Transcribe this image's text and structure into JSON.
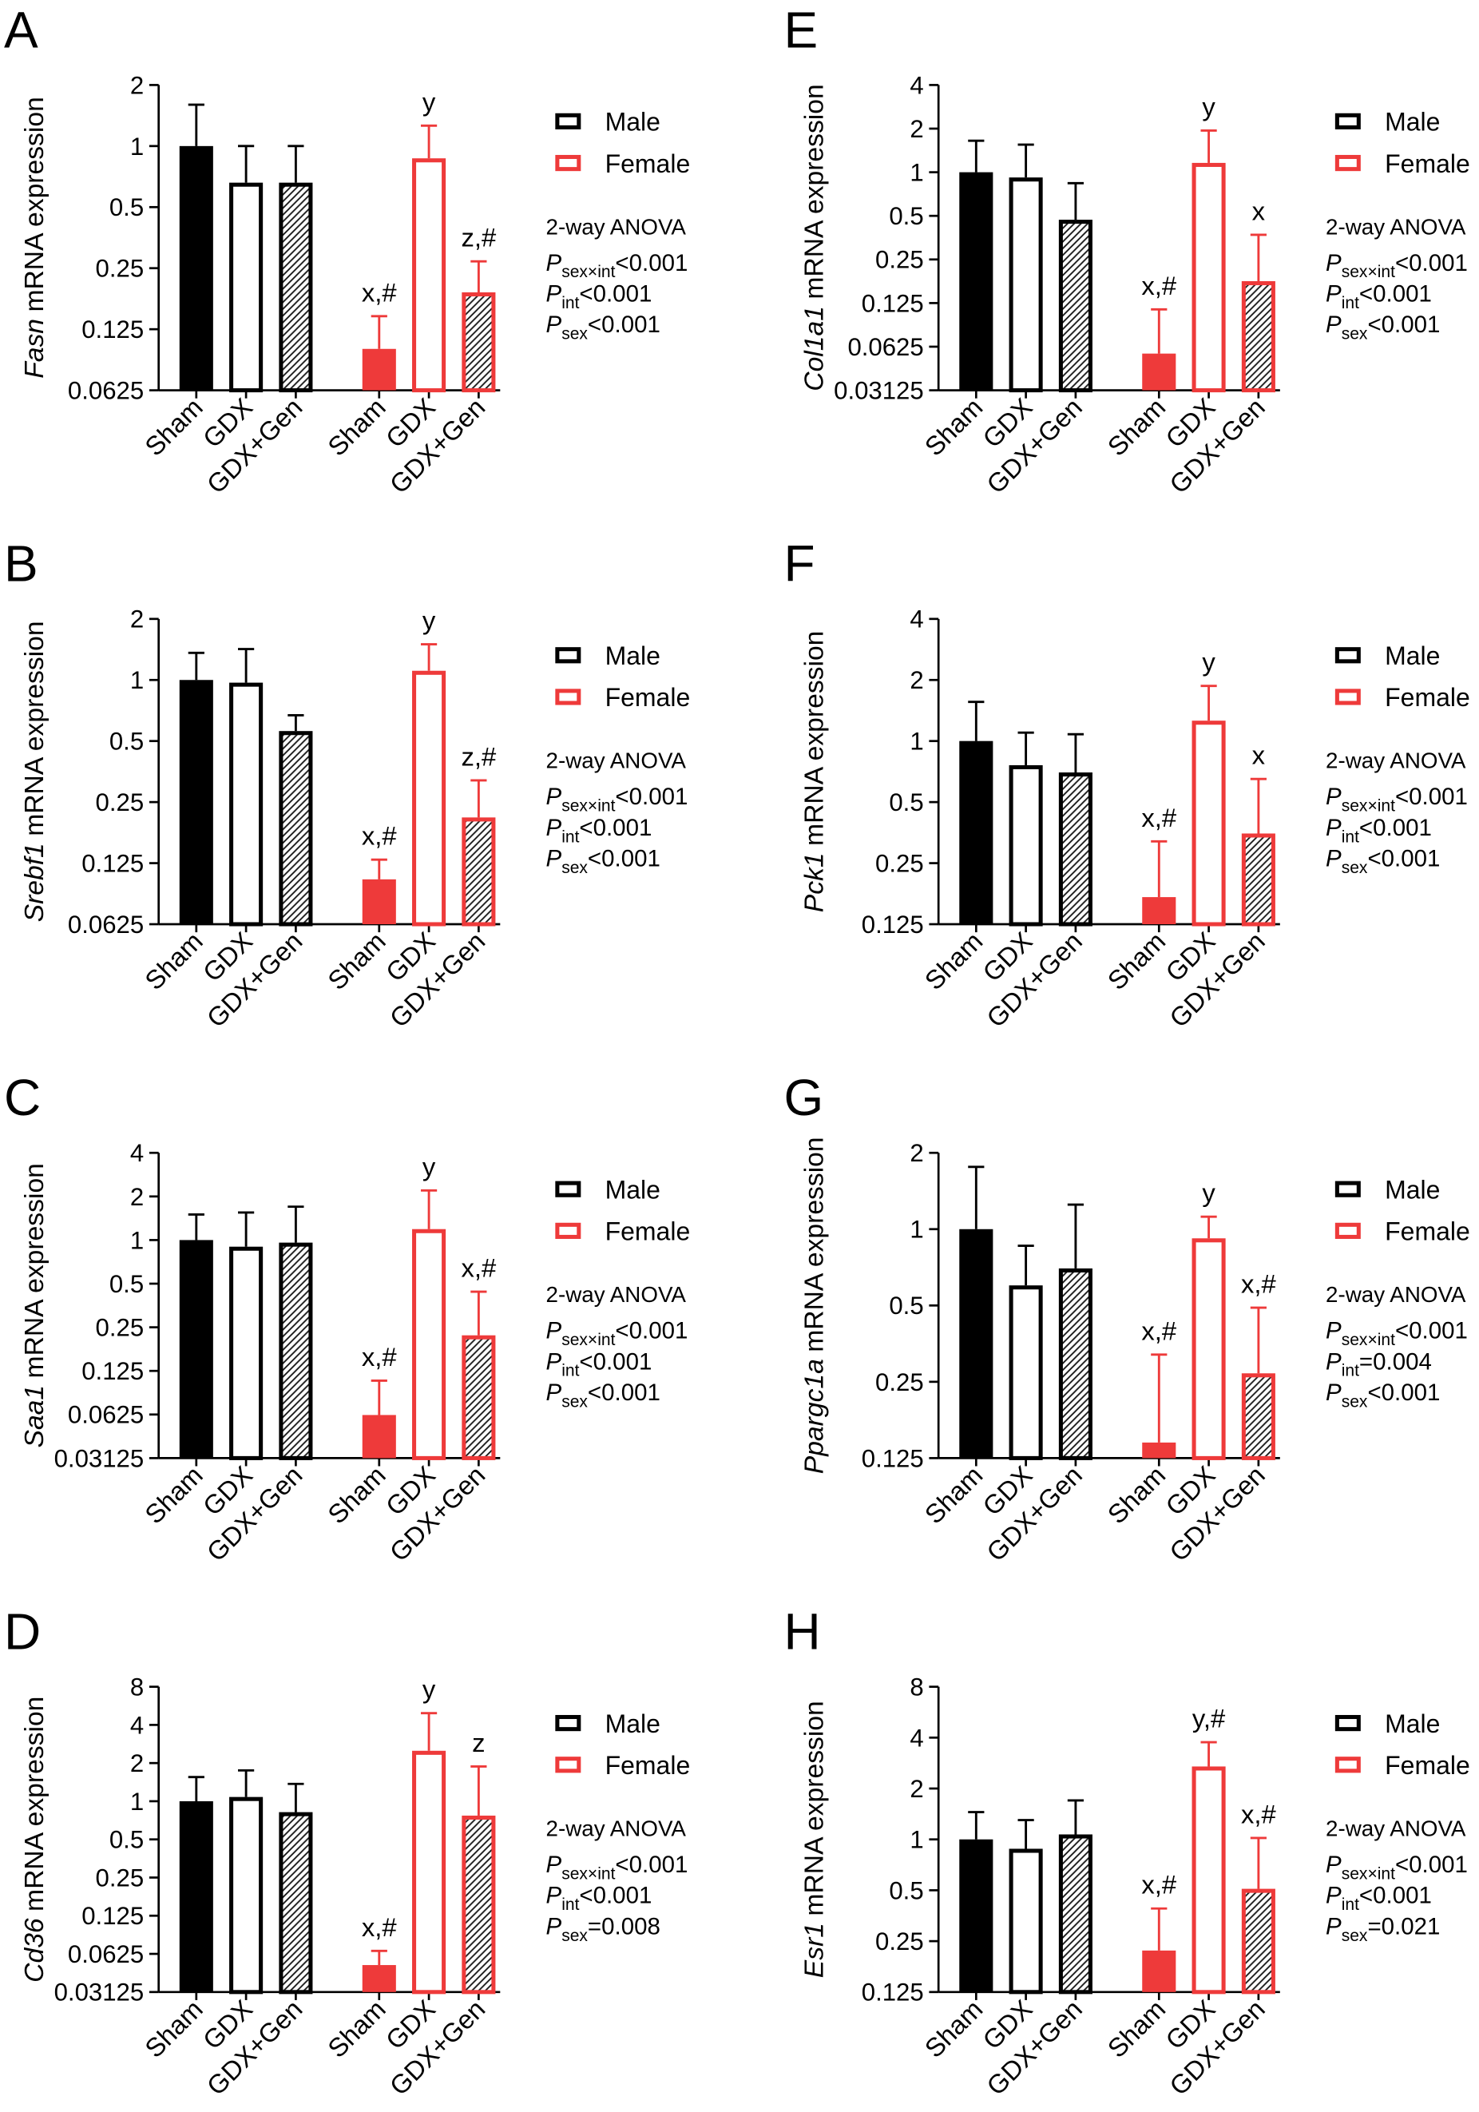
{
  "chart_data": [
    {
      "panel": "A",
      "type": "bar",
      "gene": "Fasn",
      "ylabel_rest": "mRNA expression",
      "yscale": "log2",
      "ylim": [
        0.0625,
        2
      ],
      "yticks": [
        2,
        1,
        0.5,
        0.25,
        0.125,
        0.0625
      ],
      "categories": [
        "Sham",
        "GDX",
        "GDX+Gen"
      ],
      "legend": "right",
      "series": [
        {
          "name": "Male",
          "color": "#000000",
          "values": [
            1.0,
            0.66,
            0.66
          ],
          "error_upper": [
            1.6,
            1.0,
            1.0
          ]
        },
        {
          "name": "Female",
          "color": "#EE3A3A",
          "values": [
            0.1,
            0.87,
            0.19
          ],
          "error_upper": [
            0.145,
            1.26,
            0.27
          ],
          "labels": [
            "x,#",
            "y",
            "z,#"
          ]
        }
      ],
      "stats": {
        "title": "2-way ANOVA",
        "tests": [
          {
            "symbol": "P",
            "sub": "sex×int",
            "value": "<0.001"
          },
          {
            "symbol": "P",
            "sub": "int",
            "value": "<0.001"
          },
          {
            "symbol": "P",
            "sub": "sex",
            "value": "<0.001"
          }
        ]
      }
    },
    {
      "panel": "B",
      "type": "bar",
      "gene": "Srebf1",
      "ylabel_rest": "mRNA expression",
      "yscale": "log2",
      "ylim": [
        0.0625,
        2
      ],
      "yticks": [
        2,
        1,
        0.5,
        0.25,
        0.125,
        0.0625
      ],
      "categories": [
        "Sham",
        "GDX",
        "GDX+Gen"
      ],
      "legend": "right",
      "series": [
        {
          "name": "Male",
          "color": "#000000",
          "values": [
            1.0,
            0.97,
            0.56
          ],
          "error_upper": [
            1.36,
            1.42,
            0.67
          ]
        },
        {
          "name": "Female",
          "color": "#EE3A3A",
          "values": [
            0.104,
            1.11,
            0.21
          ],
          "error_upper": [
            0.13,
            1.5,
            0.32
          ],
          "labels": [
            "x,#",
            "y",
            "z,#"
          ]
        }
      ],
      "stats": {
        "title": "2-way ANOVA",
        "tests": [
          {
            "symbol": "P",
            "sub": "sex×int",
            "value": "<0.001"
          },
          {
            "symbol": "P",
            "sub": "int",
            "value": "<0.001"
          },
          {
            "symbol": "P",
            "sub": "sex",
            "value": "<0.001"
          }
        ]
      }
    },
    {
      "panel": "C",
      "type": "bar",
      "gene": "Saa1",
      "ylabel_rest": "mRNA expression",
      "yscale": "log2",
      "ylim": [
        0.03125,
        4
      ],
      "yticks": [
        4,
        2,
        1,
        0.5,
        0.25,
        0.125,
        0.0625,
        0.03125
      ],
      "categories": [
        "Sham",
        "GDX",
        "GDX+Gen"
      ],
      "legend": "right",
      "series": [
        {
          "name": "Male",
          "color": "#000000",
          "values": [
            1.0,
            0.9,
            0.96
          ],
          "error_upper": [
            1.5,
            1.55,
            1.7
          ]
        },
        {
          "name": "Female",
          "color": "#EE3A3A",
          "values": [
            0.062,
            1.19,
            0.22
          ],
          "error_upper": [
            0.107,
            2.2,
            0.44
          ],
          "labels": [
            "x,#",
            "y",
            "x,#"
          ]
        }
      ],
      "stats": {
        "title": "2-way ANOVA",
        "tests": [
          {
            "symbol": "P",
            "sub": "sex×int",
            "value": "<0.001"
          },
          {
            "symbol": "P",
            "sub": "int",
            "value": "<0.001"
          },
          {
            "symbol": "P",
            "sub": "sex",
            "value": "<0.001"
          }
        ]
      }
    },
    {
      "panel": "D",
      "type": "bar",
      "gene": "Cd36",
      "ylabel_rest": "mRNA expression",
      "yscale": "log2",
      "ylim": [
        0.03125,
        8
      ],
      "yticks": [
        8,
        4,
        2,
        1,
        0.5,
        0.25,
        0.125,
        0.0625,
        0.03125
      ],
      "categories": [
        "Sham",
        "GDX",
        "GDX+Gen"
      ],
      "legend": "right",
      "series": [
        {
          "name": "Male",
          "color": "#000000",
          "values": [
            1.0,
            1.08,
            0.82
          ],
          "error_upper": [
            1.55,
            1.75,
            1.37
          ]
        },
        {
          "name": "Female",
          "color": "#EE3A3A",
          "values": [
            0.051,
            2.5,
            0.77
          ],
          "error_upper": [
            0.066,
            4.95,
            1.88
          ],
          "labels": [
            "x,#",
            "y",
            "z"
          ]
        }
      ],
      "stats": {
        "title": "2-way ANOVA",
        "tests": [
          {
            "symbol": "P",
            "sub": "sex×int",
            "value": "<0.001"
          },
          {
            "symbol": "P",
            "sub": "int",
            "value": "<0.001"
          },
          {
            "symbol": "P",
            "sub": "sex",
            "value": "=0.008"
          }
        ]
      }
    },
    {
      "panel": "E",
      "type": "bar",
      "gene": "Col1a1",
      "ylabel_rest": "mRNA expression",
      "yscale": "log2",
      "ylim": [
        0.03125,
        4
      ],
      "yticks": [
        4,
        2,
        1,
        0.5,
        0.25,
        0.125,
        0.0625,
        0.03125
      ],
      "categories": [
        "Sham",
        "GDX",
        "GDX+Gen"
      ],
      "legend": "right",
      "series": [
        {
          "name": "Male",
          "color": "#000000",
          "values": [
            1.0,
            0.92,
            0.47
          ],
          "error_upper": [
            1.65,
            1.55,
            0.84
          ]
        },
        {
          "name": "Female",
          "color": "#EE3A3A",
          "values": [
            0.056,
            1.16,
            0.177
          ],
          "error_upper": [
            0.113,
            1.94,
            0.37
          ],
          "labels": [
            "x,#",
            "y",
            "x"
          ]
        }
      ],
      "stats": {
        "title": "2-way ANOVA",
        "tests": [
          {
            "symbol": "P",
            "sub": "sex×int",
            "value": "<0.001"
          },
          {
            "symbol": "P",
            "sub": "int",
            "value": "<0.001"
          },
          {
            "symbol": "P",
            "sub": "sex",
            "value": "<0.001"
          }
        ]
      }
    },
    {
      "panel": "F",
      "type": "bar",
      "gene": "Pck1",
      "ylabel_rest": "mRNA expression",
      "yscale": "log2",
      "ylim": [
        0.125,
        4
      ],
      "yticks": [
        4,
        2,
        1,
        0.5,
        0.25,
        0.125
      ],
      "categories": [
        "Sham",
        "GDX",
        "GDX+Gen"
      ],
      "legend": "right",
      "series": [
        {
          "name": "Male",
          "color": "#000000",
          "values": [
            1.0,
            0.76,
            0.7
          ],
          "error_upper": [
            1.56,
            1.1,
            1.08
          ]
        },
        {
          "name": "Female",
          "color": "#EE3A3A",
          "values": [
            0.17,
            1.26,
            0.35
          ],
          "error_upper": [
            0.32,
            1.87,
            0.65
          ],
          "labels": [
            "x,#",
            "y",
            "x"
          ]
        }
      ],
      "stats": {
        "title": "2-way ANOVA",
        "tests": [
          {
            "symbol": "P",
            "sub": "sex×int",
            "value": "<0.001"
          },
          {
            "symbol": "P",
            "sub": "int",
            "value": "<0.001"
          },
          {
            "symbol": "P",
            "sub": "sex",
            "value": "<0.001"
          }
        ]
      }
    },
    {
      "panel": "G",
      "type": "bar",
      "gene": "Ppargc1a",
      "ylabel_rest": "mRNA expression",
      "yscale": "log2",
      "ylim": [
        0.125,
        2
      ],
      "yticks": [
        2,
        1,
        0.5,
        0.25,
        0.125
      ],
      "categories": [
        "Sham",
        "GDX",
        "GDX+Gen"
      ],
      "legend": "right",
      "series": [
        {
          "name": "Male",
          "color": "#000000",
          "values": [
            1.0,
            0.6,
            0.7
          ],
          "error_upper": [
            1.76,
            0.86,
            1.25
          ]
        },
        {
          "name": "Female",
          "color": "#EE3A3A",
          "values": [
            0.144,
            0.92,
            0.27
          ],
          "error_upper": [
            0.32,
            1.12,
            0.49
          ],
          "labels": [
            "x,#",
            "y",
            "x,#"
          ]
        }
      ],
      "stats": {
        "title": "2-way ANOVA",
        "tests": [
          {
            "symbol": "P",
            "sub": "sex×int",
            "value": "<0.001"
          },
          {
            "symbol": "P",
            "sub": "int",
            "value": "=0.004"
          },
          {
            "symbol": "P",
            "sub": "sex",
            "value": "<0.001"
          }
        ]
      }
    },
    {
      "panel": "H",
      "type": "bar",
      "gene": "Esr1",
      "ylabel_rest": "mRNA expression",
      "yscale": "log2",
      "ylim": [
        0.125,
        8
      ],
      "yticks": [
        8,
        4,
        2,
        1,
        0.5,
        0.25,
        0.125
      ],
      "categories": [
        "Sham",
        "GDX",
        "GDX+Gen"
      ],
      "legend": "right",
      "series": [
        {
          "name": "Male",
          "color": "#000000",
          "values": [
            1.0,
            0.88,
            1.07
          ],
          "error_upper": [
            1.45,
            1.3,
            1.7
          ]
        },
        {
          "name": "Female",
          "color": "#EE3A3A",
          "values": [
            0.22,
            2.7,
            0.51
          ],
          "error_upper": [
            0.39,
            3.76,
            1.02
          ],
          "labels": [
            "x,#",
            "y,#",
            "x,#"
          ]
        }
      ],
      "stats": {
        "title": "2-way ANOVA",
        "tests": [
          {
            "symbol": "P",
            "sub": "sex×int",
            "value": "<0.001"
          },
          {
            "symbol": "P",
            "sub": "int",
            "value": "<0.001"
          },
          {
            "symbol": "P",
            "sub": "sex",
            "value": "=0.021"
          }
        ]
      }
    }
  ]
}
